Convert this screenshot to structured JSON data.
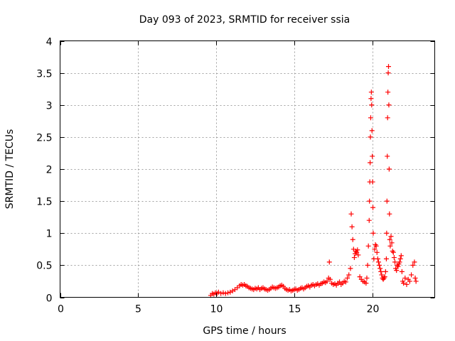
{
  "chart_data": {
    "type": "scatter",
    "title": "Day 093 of 2023, SRMTID for receiver ssia",
    "xlabel": "GPS time / hours",
    "ylabel": "SRMTID / TECUs",
    "xlim": [
      0,
      24
    ],
    "ylim": [
      0,
      4
    ],
    "x_ticks": [
      0,
      5,
      10,
      15,
      20
    ],
    "y_ticks": [
      0,
      0.5,
      1,
      1.5,
      2,
      2.5,
      3,
      3.5,
      4
    ],
    "x_tick_labels": [
      "0",
      "5",
      "10",
      "15",
      "20"
    ],
    "y_tick_labels": [
      "0",
      "0.5",
      "1",
      "1.5",
      "2",
      "2.5",
      "3",
      "3.5",
      "4"
    ],
    "grid": true,
    "marker": "+",
    "color": "#ff0000",
    "series": [
      {
        "name": "ssia",
        "x": [
          9.65,
          9.75,
          9.85,
          9.95,
          10.05,
          10.15,
          10.3,
          10.45,
          10.6,
          10.75,
          10.9,
          11.05,
          11.2,
          11.35,
          11.5,
          11.6,
          11.7,
          11.8,
          11.9,
          12.0,
          12.1,
          12.2,
          12.3,
          12.4,
          12.5,
          12.6,
          12.7,
          12.8,
          12.9,
          13.0,
          13.1,
          13.2,
          13.3,
          13.4,
          13.5,
          13.6,
          13.7,
          13.8,
          13.9,
          14.0,
          14.1,
          14.2,
          14.3,
          14.4,
          14.5,
          14.6,
          14.7,
          14.8,
          14.9,
          15.0,
          15.1,
          15.2,
          15.3,
          15.4,
          15.5,
          15.6,
          15.7,
          15.8,
          15.9,
          16.0,
          16.1,
          16.2,
          16.3,
          16.4,
          16.5,
          16.6,
          16.7,
          16.8,
          16.9,
          17.0,
          17.1,
          17.2,
          17.25,
          17.3,
          17.4,
          17.5,
          17.6,
          17.7,
          17.8,
          17.9,
          18.0,
          18.1,
          18.2,
          18.3,
          18.4,
          18.5,
          18.6,
          18.65,
          18.7,
          18.75,
          18.8,
          18.85,
          18.9,
          18.95,
          19.0,
          19.05,
          19.1,
          19.2,
          19.3,
          19.4,
          19.5,
          19.6,
          19.65,
          19.7,
          19.75,
          19.8,
          19.82,
          19.84,
          19.86,
          19.88,
          19.9,
          19.92,
          19.94,
          19.96,
          19.98,
          20.0,
          20.02,
          20.04,
          20.06,
          20.1,
          20.15,
          20.2,
          20.25,
          20.3,
          20.35,
          20.4,
          20.45,
          20.5,
          20.55,
          20.6,
          20.65,
          20.7,
          20.75,
          20.8,
          20.85,
          20.9,
          20.92,
          20.94,
          20.96,
          20.98,
          21.0,
          21.02,
          21.04,
          21.06,
          21.08,
          21.1,
          21.12,
          21.15,
          21.2,
          21.25,
          21.3,
          21.35,
          21.4,
          21.45,
          21.5,
          21.55,
          21.6,
          21.65,
          21.7,
          21.75,
          21.8,
          21.85,
          21.9,
          21.95,
          22.0,
          22.1,
          22.2,
          22.3,
          22.4,
          22.5,
          22.6,
          22.7,
          22.75,
          22.8
        ],
        "y": [
          0.03,
          0.06,
          0.05,
          0.07,
          0.06,
          0.08,
          0.06,
          0.07,
          0.06,
          0.07,
          0.08,
          0.1,
          0.12,
          0.15,
          0.18,
          0.2,
          0.19,
          0.2,
          0.18,
          0.17,
          0.15,
          0.14,
          0.13,
          0.12,
          0.14,
          0.13,
          0.15,
          0.12,
          0.14,
          0.15,
          0.13,
          0.12,
          0.11,
          0.12,
          0.14,
          0.16,
          0.15,
          0.14,
          0.15,
          0.16,
          0.18,
          0.19,
          0.17,
          0.14,
          0.12,
          0.11,
          0.12,
          0.1,
          0.11,
          0.12,
          0.13,
          0.11,
          0.12,
          0.14,
          0.15,
          0.13,
          0.15,
          0.17,
          0.18,
          0.16,
          0.19,
          0.2,
          0.18,
          0.2,
          0.21,
          0.19,
          0.21,
          0.22,
          0.24,
          0.23,
          0.25,
          0.3,
          0.55,
          0.28,
          0.22,
          0.2,
          0.21,
          0.19,
          0.22,
          0.24,
          0.2,
          0.22,
          0.25,
          0.24,
          0.3,
          0.35,
          0.45,
          1.3,
          1.1,
          0.9,
          0.75,
          0.62,
          0.68,
          0.72,
          0.7,
          0.74,
          0.66,
          0.32,
          0.28,
          0.25,
          0.24,
          0.22,
          0.3,
          0.5,
          0.8,
          1.2,
          1.5,
          1.8,
          2.1,
          2.5,
          2.8,
          3.1,
          3.2,
          3.0,
          2.6,
          2.2,
          1.8,
          1.4,
          1.0,
          0.6,
          0.75,
          0.82,
          0.8,
          0.7,
          0.6,
          0.55,
          0.5,
          0.45,
          0.4,
          0.35,
          0.3,
          0.28,
          0.3,
          0.32,
          0.4,
          0.6,
          1.0,
          1.5,
          2.2,
          2.8,
          3.2,
          3.5,
          3.6,
          3.0,
          2.0,
          1.3,
          0.9,
          0.8,
          0.95,
          0.85,
          0.72,
          0.7,
          0.62,
          0.55,
          0.45,
          0.42,
          0.5,
          0.48,
          0.52,
          0.55,
          0.6,
          0.65,
          0.4,
          0.25,
          0.22,
          0.3,
          0.2,
          0.28,
          0.25,
          0.35,
          0.5,
          0.55,
          0.3,
          0.25
        ]
      }
    ]
  }
}
